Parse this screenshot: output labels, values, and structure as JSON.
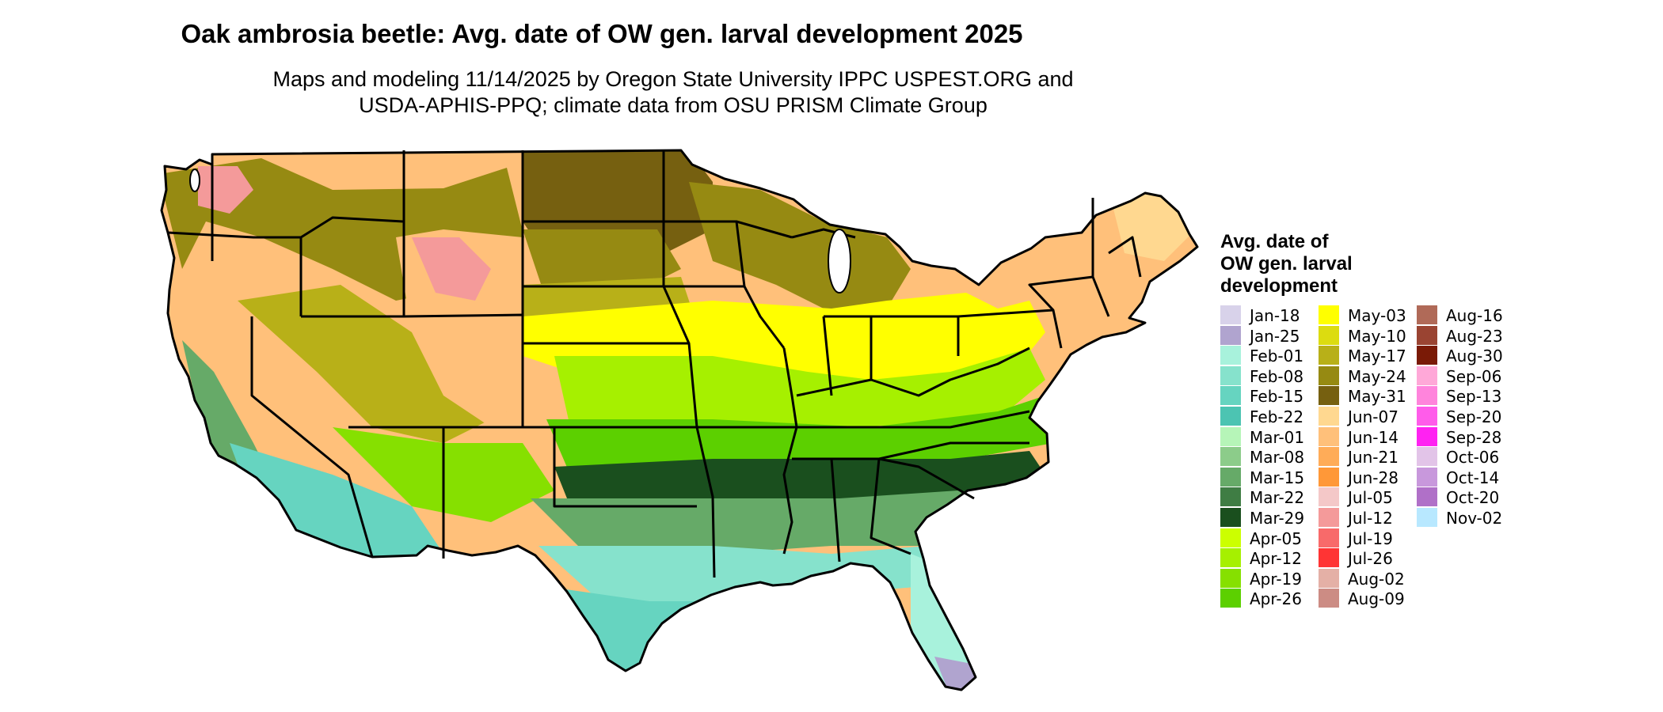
{
  "title": "Oak ambrosia beetle: Avg. date of OW gen. larval development 2025",
  "subtitle_line1": "Maps and modeling 11/14/2025 by Oregon State University IPPC USPEST.ORG and",
  "subtitle_line2": "USDA-APHIS-PPQ; climate data from OSU PRISM Climate Group",
  "legend": {
    "title_lines": [
      "Avg. date of",
      "OW gen. larval",
      "development"
    ],
    "items": [
      {
        "label": "Jan-18",
        "color": "#d8d2ea"
      },
      {
        "label": "Jan-25",
        "color": "#b0a4cf"
      },
      {
        "label": "Feb-01",
        "color": "#a8f2dc"
      },
      {
        "label": "Feb-08",
        "color": "#86e2cc"
      },
      {
        "label": "Feb-15",
        "color": "#66d4c0"
      },
      {
        "label": "Feb-22",
        "color": "#4cc4b2"
      },
      {
        "label": "Mar-01",
        "color": "#b6f5b8"
      },
      {
        "label": "Mar-08",
        "color": "#8ccc8a"
      },
      {
        "label": "Mar-15",
        "color": "#66aa68"
      },
      {
        "label": "Mar-22",
        "color": "#3f7d44"
      },
      {
        "label": "Mar-29",
        "color": "#1a4f1e"
      },
      {
        "label": "Apr-05",
        "color": "#ccff00"
      },
      {
        "label": "Apr-12",
        "color": "#a6f000"
      },
      {
        "label": "Apr-19",
        "color": "#86e000"
      },
      {
        "label": "Apr-26",
        "color": "#5cd000"
      },
      {
        "label": "May-03",
        "color": "#ffff00"
      },
      {
        "label": "May-10",
        "color": "#dcdc10"
      },
      {
        "label": "May-17",
        "color": "#b8b018"
      },
      {
        "label": "May-24",
        "color": "#968a12"
      },
      {
        "label": "May-31",
        "color": "#766010"
      },
      {
        "label": "Jun-07",
        "color": "#ffd890"
      },
      {
        "label": "Jun-14",
        "color": "#ffc07a"
      },
      {
        "label": "Jun-21",
        "color": "#ffac58"
      },
      {
        "label": "Jun-28",
        "color": "#ff9838"
      },
      {
        "label": "Jul-05",
        "color": "#f4c8c8"
      },
      {
        "label": "Jul-12",
        "color": "#f49a9a"
      },
      {
        "label": "Jul-19",
        "color": "#f86a6a"
      },
      {
        "label": "Jul-26",
        "color": "#ff3434"
      },
      {
        "label": "Aug-02",
        "color": "#e4b0a6"
      },
      {
        "label": "Aug-09",
        "color": "#cc8c84"
      },
      {
        "label": "Aug-16",
        "color": "#b06a58"
      },
      {
        "label": "Aug-23",
        "color": "#9a4432"
      },
      {
        "label": "Aug-30",
        "color": "#7a1a06"
      },
      {
        "label": "Sep-06",
        "color": "#ffa8d8"
      },
      {
        "label": "Sep-13",
        "color": "#ff84dc"
      },
      {
        "label": "Sep-20",
        "color": "#ff5cea"
      },
      {
        "label": "Sep-28",
        "color": "#ff22f2"
      },
      {
        "label": "Oct-06",
        "color": "#e2c4e8"
      },
      {
        "label": "Oct-14",
        "color": "#c898dc"
      },
      {
        "label": "Oct-20",
        "color": "#b070c8"
      },
      {
        "label": "Nov-02",
        "color": "#b8e8ff"
      }
    ]
  }
}
